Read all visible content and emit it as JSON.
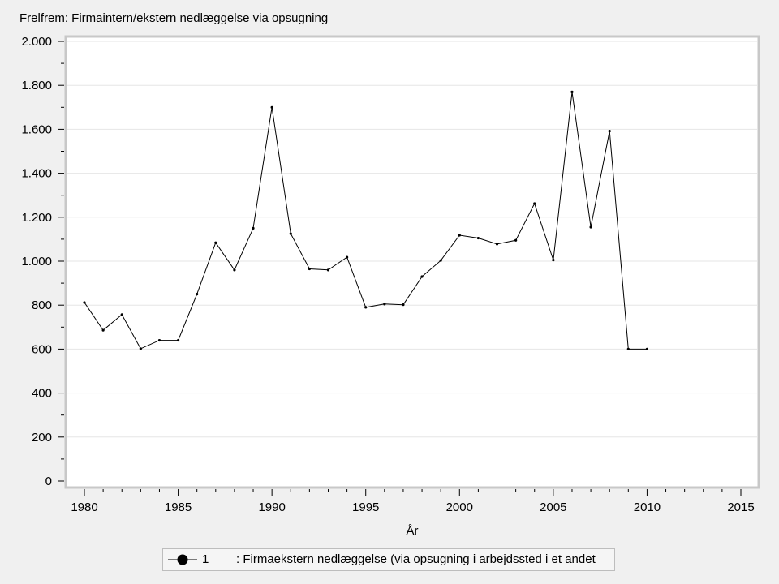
{
  "title": "Frelfrem: Firmaintern/ekstern nedlæggelse via opsugning",
  "colors": {
    "line": "#000000",
    "grid": "#e6e6e6",
    "frame": "#c8c8c8",
    "plot_bg": "#ffffff",
    "page_bg": "#f0f0f0"
  },
  "chart_data": {
    "type": "line",
    "title": "Frelfrem: Firmaintern/ekstern nedlæggelse via opsugning",
    "xlabel": "År",
    "ylabel": "",
    "xlim": [
      1978.9,
      2016
    ],
    "ylim": [
      0,
      2000
    ],
    "xticks": [
      1980,
      1985,
      1990,
      1995,
      2000,
      2005,
      2010,
      2015
    ],
    "xtick_labels": [
      "1980",
      "1985",
      "1990",
      "1995",
      "2000",
      "2005",
      "2010",
      "2015"
    ],
    "yticks": [
      0,
      200,
      400,
      600,
      800,
      1000,
      1200,
      1400,
      1600,
      1800,
      2000
    ],
    "ytick_labels": [
      "0",
      "200",
      "400",
      "600",
      "800",
      "1.000",
      "1.200",
      "1.400",
      "1.600",
      "1.800",
      "2.000"
    ],
    "grid": true,
    "legend_position": "bottom",
    "series": [
      {
        "name": "1",
        "legend_label": ": Firmaekstern nedlæggelse (via opsugning i arbejdssted i et andet",
        "x": [
          1980,
          1981,
          1982,
          1983,
          1984,
          1985,
          1986,
          1987,
          1988,
          1989,
          1990,
          1991,
          1992,
          1993,
          1994,
          1995,
          1996,
          1997,
          1998,
          1999,
          2000,
          2001,
          2002,
          2003,
          2004,
          2005,
          2006,
          2007,
          2008,
          2009,
          2010
        ],
        "y": [
          812,
          686,
          757,
          602,
          640,
          640,
          850,
          1084,
          960,
          1150,
          1700,
          1125,
          965,
          960,
          1018,
          790,
          805,
          802,
          930,
          1003,
          1118,
          1105,
          1078,
          1095,
          1262,
          1005,
          1770,
          1155,
          1592,
          600,
          600
        ]
      }
    ]
  }
}
